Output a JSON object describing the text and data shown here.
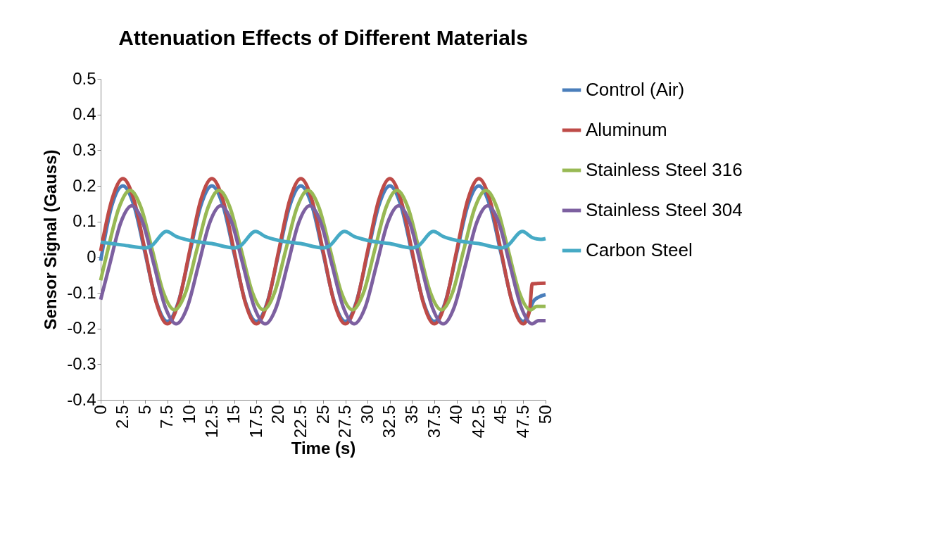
{
  "chart_data": {
    "type": "line",
    "title": "Attenuation  Effects of Different Materials",
    "xlabel": "Time (s)",
    "ylabel": "Sensor Signal (Gauss)",
    "xlim": [
      0,
      50
    ],
    "xticks": [
      0,
      2.5,
      5,
      7.5,
      10,
      12.5,
      15,
      17.5,
      20,
      22.5,
      25,
      27.5,
      30,
      32.5,
      35,
      37.5,
      40,
      42.5,
      45,
      47.5,
      50
    ],
    "ylim": [
      -0.4,
      0.5
    ],
    "yticks": [
      -0.4,
      -0.3,
      -0.2,
      -0.1,
      0,
      0.1,
      0.2,
      0.3,
      0.4,
      0.5
    ],
    "grid": false,
    "legend": "right",
    "marker": "none",
    "line_style": "solid",
    "series": [
      {
        "name": "Control (Air)",
        "color": "#4a7ebb",
        "x": [
          0,
          1.25,
          2.5,
          3.75,
          5,
          6.25,
          7.5,
          8.75,
          10,
          11.25,
          12.5,
          13.75,
          15,
          16.25,
          17.5,
          18.75,
          20,
          21.25,
          22.5,
          23.75,
          25,
          26.25,
          27.5,
          28.75,
          30,
          31.25,
          32.5,
          33.75,
          35,
          36.25,
          37.5,
          38.75,
          40,
          41.25,
          42.5,
          43.75,
          45,
          46.25,
          47.5,
          48.75,
          50
        ],
        "values": [
          -0.01,
          0.144,
          0.2,
          0.144,
          0.01,
          -0.124,
          -0.18,
          -0.124,
          0.01,
          0.144,
          0.2,
          0.144,
          0.01,
          -0.124,
          -0.18,
          -0.124,
          0.01,
          0.144,
          0.2,
          0.144,
          0.01,
          -0.124,
          -0.18,
          -0.124,
          0.01,
          0.144,
          0.2,
          0.144,
          0.01,
          -0.124,
          -0.18,
          -0.124,
          0.01,
          0.144,
          0.2,
          0.144,
          0.01,
          -0.124,
          -0.18,
          -0.12,
          -0.105
        ]
      },
      {
        "name": "Aluminum",
        "color": "#be4b48",
        "x": [
          0,
          1.25,
          2.5,
          3.75,
          5,
          6.25,
          7.5,
          8.75,
          10,
          11.25,
          12.5,
          13.75,
          15,
          16.25,
          17.5,
          18.75,
          20,
          21.25,
          22.5,
          23.75,
          25,
          26.25,
          27.5,
          28.75,
          30,
          31.25,
          32.5,
          33.75,
          35,
          36.25,
          37.5,
          38.75,
          40,
          41.25,
          42.5,
          43.75,
          45,
          46.25,
          47.5,
          48.2,
          48.5,
          50
        ],
        "values": [
          0.017,
          0.16,
          0.22,
          0.16,
          0.017,
          -0.127,
          -0.187,
          -0.127,
          0.017,
          0.16,
          0.22,
          0.16,
          0.017,
          -0.127,
          -0.187,
          -0.127,
          0.017,
          0.16,
          0.22,
          0.16,
          0.017,
          -0.127,
          -0.187,
          -0.127,
          0.017,
          0.16,
          0.22,
          0.16,
          0.017,
          -0.127,
          -0.187,
          -0.127,
          0.017,
          0.16,
          0.22,
          0.16,
          0.017,
          -0.127,
          -0.187,
          -0.15,
          -0.075,
          -0.073
        ]
      },
      {
        "name": "Stainless Steel 316",
        "color": "#98b954",
        "x": [
          0,
          0.8,
          2.05,
          3.3,
          4.55,
          5.8,
          7.05,
          8.3,
          9.55,
          10.8,
          12.05,
          13.3,
          14.55,
          15.8,
          17.05,
          18.3,
          19.55,
          20.8,
          22.05,
          23.3,
          24.55,
          25.8,
          27.05,
          28.3,
          29.55,
          30.8,
          32.05,
          33.3,
          34.55,
          35.8,
          37.05,
          38.3,
          39.55,
          40.8,
          42.05,
          43.3,
          44.55,
          45.8,
          47.05,
          48.3,
          49,
          50
        ],
        "values": [
          -0.065,
          0.02,
          0.138,
          0.187,
          0.138,
          0.02,
          -0.099,
          -0.148,
          -0.099,
          0.02,
          0.138,
          0.187,
          0.138,
          0.02,
          -0.099,
          -0.148,
          -0.099,
          0.02,
          0.138,
          0.187,
          0.138,
          0.02,
          -0.099,
          -0.148,
          -0.099,
          0.02,
          0.138,
          0.187,
          0.138,
          0.02,
          -0.099,
          -0.148,
          -0.099,
          0.02,
          0.138,
          0.187,
          0.138,
          0.02,
          -0.099,
          -0.148,
          -0.138,
          -0.138
        ]
      },
      {
        "name": "Stainless Steel 304",
        "color": "#7d60a0",
        "x": [
          0,
          1,
          2.25,
          3.5,
          4.75,
          6,
          7.25,
          8.5,
          9.75,
          11,
          12.25,
          13.5,
          14.75,
          16,
          17.25,
          18.5,
          19.75,
          21,
          22.25,
          23.5,
          24.75,
          26,
          27.25,
          28.5,
          29.75,
          31,
          32.25,
          33.5,
          34.75,
          36,
          37.25,
          38.5,
          39.75,
          41,
          42.25,
          43.5,
          44.75,
          46,
          47.25,
          48.5,
          49.2,
          50
        ],
        "values": [
          -0.119,
          -0.022,
          0.096,
          0.144,
          0.096,
          -0.022,
          -0.139,
          -0.187,
          -0.139,
          -0.022,
          0.096,
          0.144,
          0.096,
          -0.022,
          -0.139,
          -0.187,
          -0.139,
          -0.022,
          0.096,
          0.144,
          0.096,
          -0.022,
          -0.139,
          -0.187,
          -0.139,
          -0.022,
          0.096,
          0.144,
          0.096,
          -0.022,
          -0.139,
          -0.187,
          -0.139,
          -0.022,
          0.096,
          0.144,
          0.096,
          -0.022,
          -0.139,
          -0.187,
          -0.178,
          -0.178
        ]
      },
      {
        "name": "Carbon Steel",
        "color": "#46aac5",
        "x": [
          0,
          2.5,
          5,
          5.6,
          7.4,
          8.5,
          10,
          12.5,
          15,
          15.6,
          17.4,
          18.5,
          20,
          22.5,
          25,
          25.6,
          27.4,
          28.5,
          30,
          32.5,
          35,
          35.6,
          37.4,
          38.5,
          40,
          42.5,
          45,
          45.6,
          47.4,
          48.5,
          49.5,
          50
        ],
        "values": [
          0.042,
          0.034,
          0.026,
          0.03,
          0.072,
          0.058,
          0.047,
          0.038,
          0.026,
          0.03,
          0.072,
          0.058,
          0.047,
          0.038,
          0.026,
          0.03,
          0.072,
          0.058,
          0.047,
          0.038,
          0.026,
          0.03,
          0.072,
          0.058,
          0.047,
          0.038,
          0.026,
          0.03,
          0.072,
          0.055,
          0.05,
          0.052
        ]
      }
    ]
  }
}
